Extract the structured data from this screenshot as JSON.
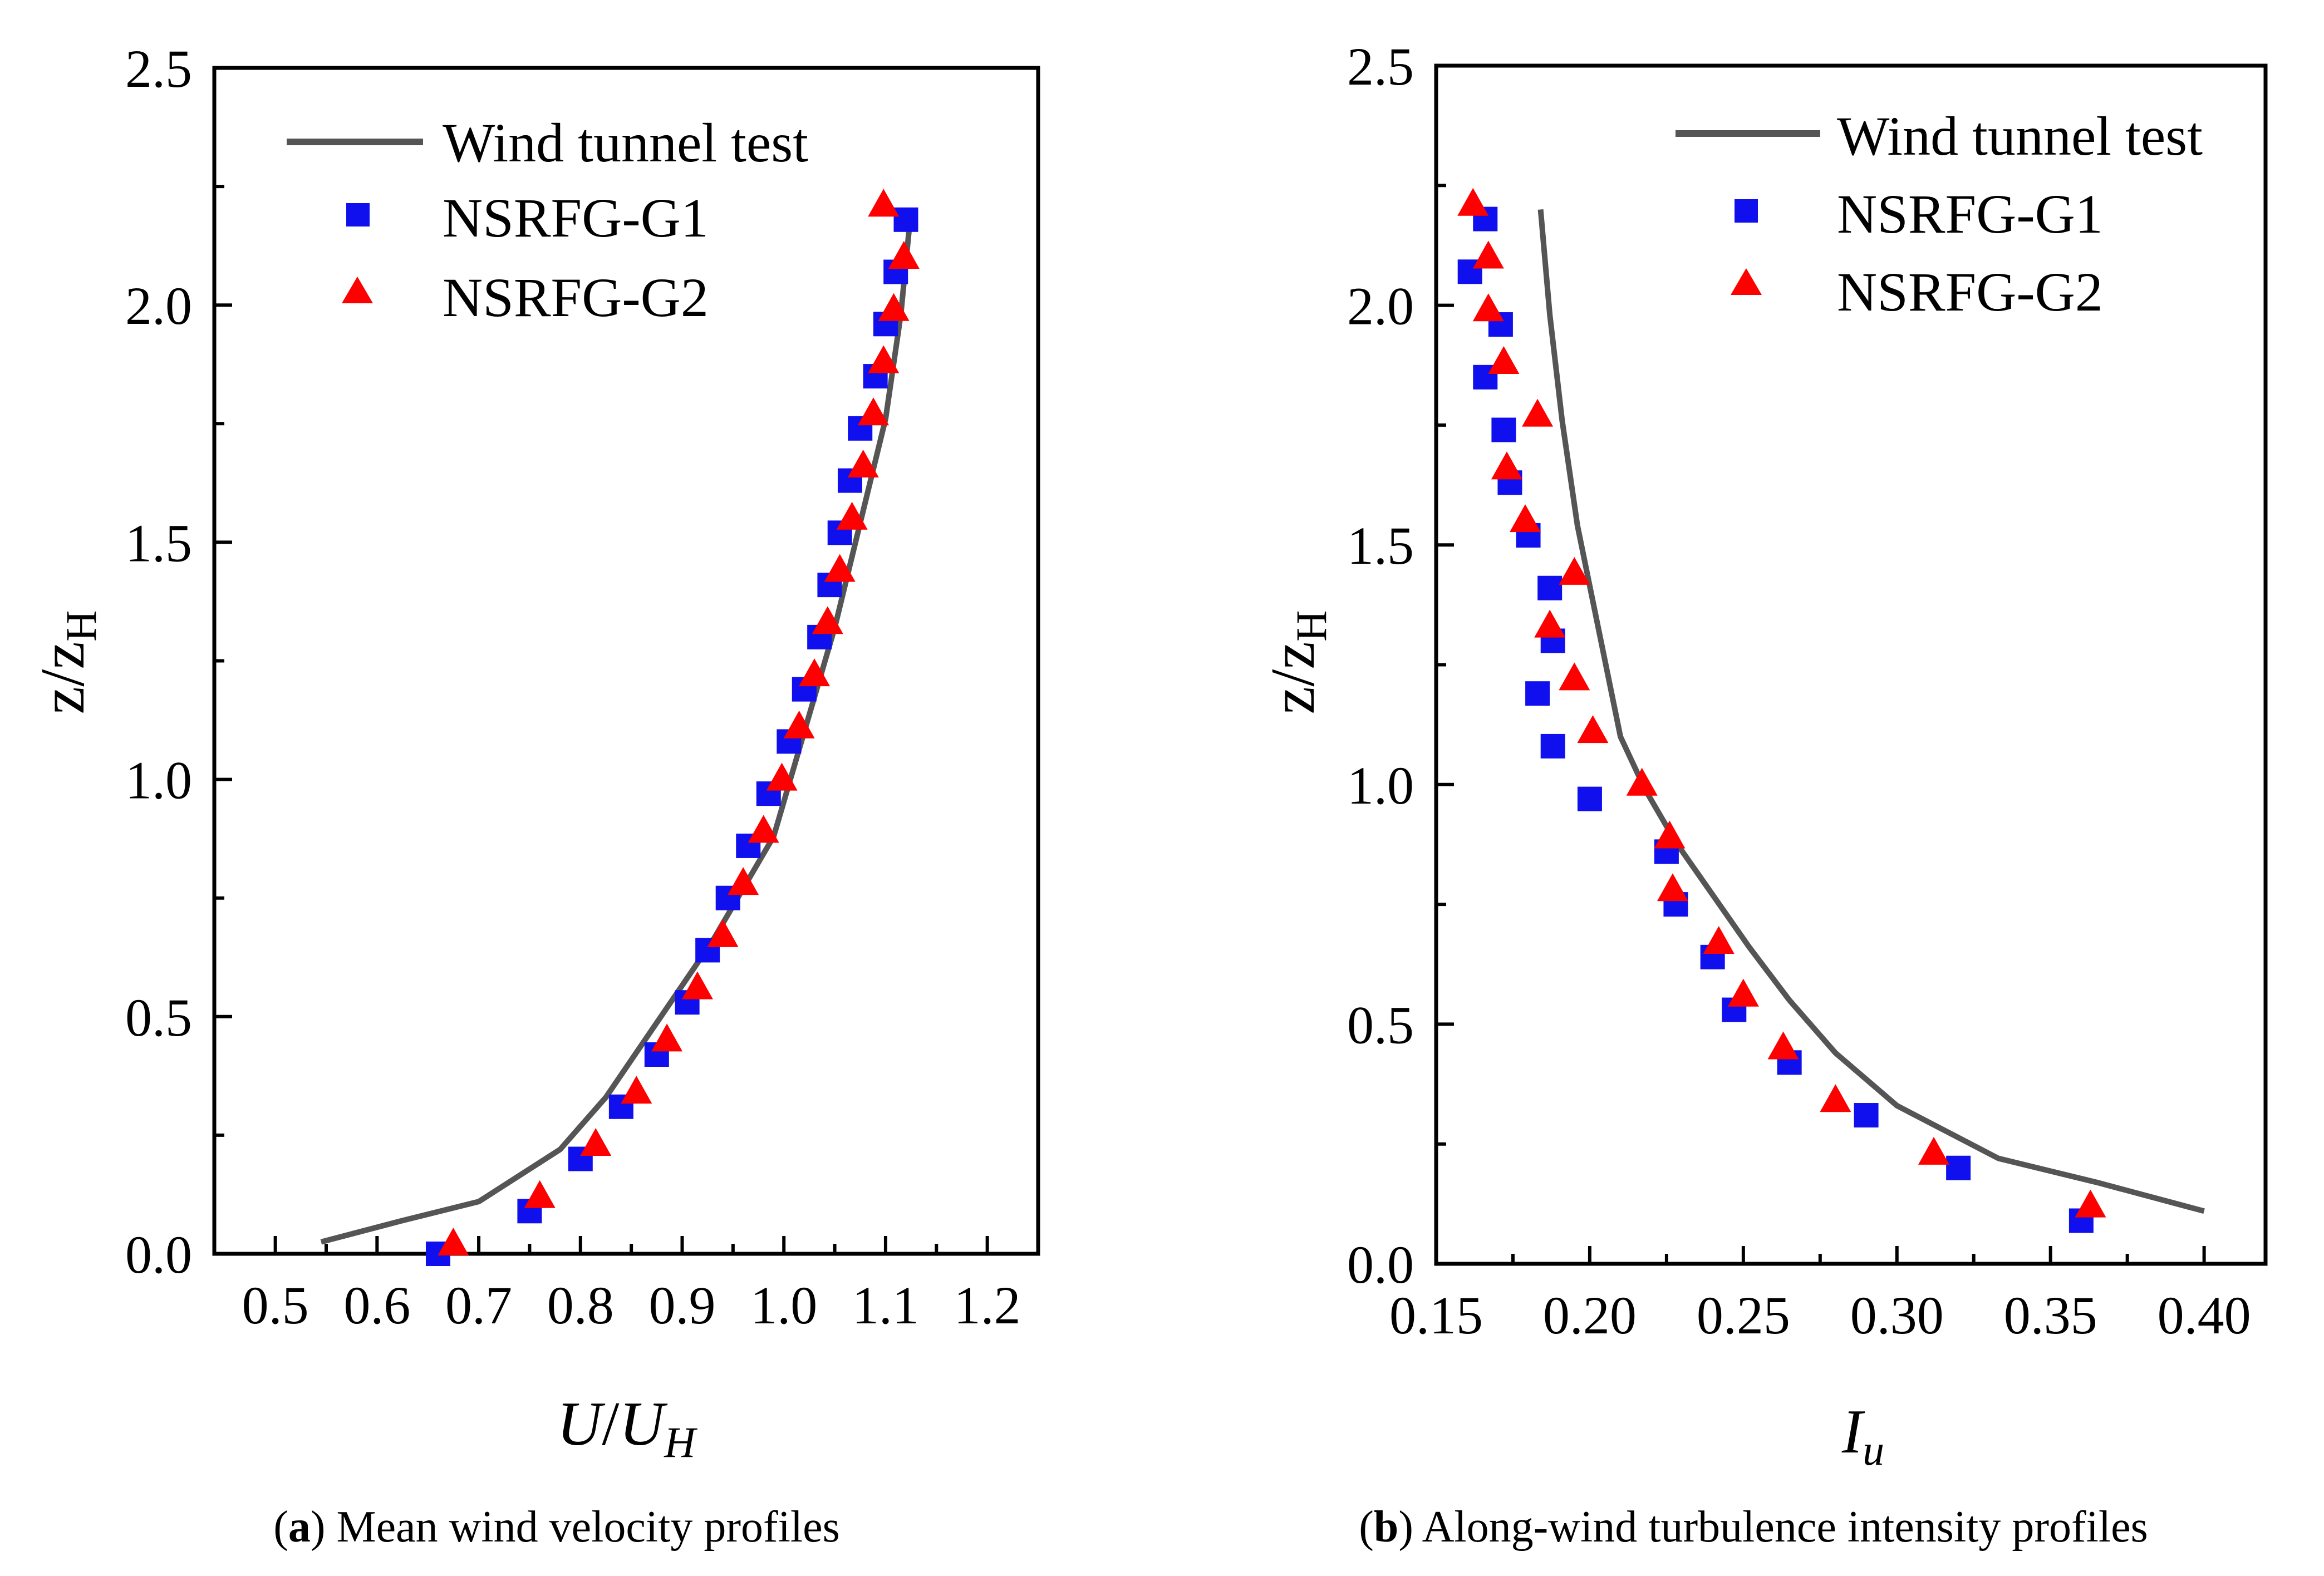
{
  "chart_data": [
    {
      "type": "line+scatter",
      "panel_label": "a",
      "caption": " Mean wind velocity profiles",
      "xlabel_main": "U",
      "xlabel_slash": "/",
      "xlabel_u": "U",
      "xlabel_sub": "H",
      "ylabel_main": "z/z",
      "ylabel_sub": "H",
      "xlim": [
        0.44,
        1.25
      ],
      "ylim": [
        0.0,
        2.5
      ],
      "xticks": [
        0.5,
        0.6,
        0.7,
        0.8,
        0.9,
        1.0,
        1.1,
        1.2
      ],
      "xtick_labels": [
        "0.5",
        "0.6",
        "0.7",
        "0.8",
        "0.9",
        "1.0",
        "1.1",
        "1.2"
      ],
      "yticks": [
        0.0,
        0.5,
        1.0,
        1.5,
        2.0,
        2.5
      ],
      "ytick_labels": [
        "0.0",
        "0.5",
        "1.0",
        "1.5",
        "2.0",
        "2.5"
      ],
      "legend": {
        "position": "top-left",
        "entries": [
          {
            "name": "Wind tunnel test",
            "marker": "line",
            "color": "#555555"
          },
          {
            "name": "NSRFG-G1",
            "marker": "square",
            "color": "#1010ee"
          },
          {
            "name": "NSRFG-G2",
            "marker": "triangle",
            "color": "#ff0000"
          }
        ]
      },
      "series": [
        {
          "name": "Wind tunnel test",
          "kind": "line",
          "color": "#555555",
          "x": [
            0.545,
            0.625,
            0.7,
            0.78,
            0.825,
            0.86,
            0.895,
            0.93,
            0.96,
            0.99,
            1.02,
            1.05,
            1.075,
            1.1,
            1.115,
            1.125
          ],
          "y": [
            0.025,
            0.07,
            0.11,
            0.22,
            0.33,
            0.44,
            0.55,
            0.66,
            0.77,
            0.88,
            1.1,
            1.32,
            1.54,
            1.76,
            1.98,
            2.2
          ]
        },
        {
          "name": "NSRFG-G1",
          "kind": "scatter",
          "marker": "square",
          "color": "#1010ee",
          "x": [
            0.66,
            0.75,
            0.8,
            0.84,
            0.875,
            0.905,
            0.925,
            0.945,
            0.965,
            0.985,
            1.005,
            1.02,
            1.035,
            1.045,
            1.055,
            1.065,
            1.075,
            1.09,
            1.1,
            1.11,
            1.12
          ],
          "y": [
            0.0,
            0.09,
            0.2,
            0.31,
            0.42,
            0.53,
            0.64,
            0.75,
            0.86,
            0.97,
            1.08,
            1.19,
            1.3,
            1.41,
            1.52,
            1.63,
            1.74,
            1.85,
            1.96,
            2.07,
            2.18
          ]
        },
        {
          "name": "NSRFG-G2",
          "kind": "scatter",
          "marker": "triangle",
          "color": "#ff0000",
          "x": [
            0.675,
            0.76,
            0.815,
            0.855,
            0.885,
            0.915,
            0.94,
            0.96,
            0.98,
            0.998,
            1.015,
            1.03,
            1.043,
            1.055,
            1.067,
            1.078,
            1.088,
            1.098,
            1.108,
            1.118,
            1.098
          ],
          "y": [
            0.02,
            0.12,
            0.23,
            0.34,
            0.45,
            0.56,
            0.67,
            0.78,
            0.89,
            1.0,
            1.11,
            1.22,
            1.33,
            1.44,
            1.55,
            1.66,
            1.77,
            1.88,
            1.99,
            2.1,
            2.21
          ]
        }
      ]
    },
    {
      "type": "line+scatter",
      "panel_label": "b",
      "caption": " Along-wind turbulence intensity profiles",
      "xlabel_main": "I",
      "xlabel_sub": "u",
      "ylabel_main": "z/z",
      "ylabel_sub": "H",
      "xlim": [
        0.15,
        0.42
      ],
      "ylim": [
        0.0,
        2.5
      ],
      "xticks": [
        0.15,
        0.2,
        0.25,
        0.3,
        0.35,
        0.4
      ],
      "xtick_labels": [
        "0.15",
        "0.20",
        "0.25",
        "0.30",
        "0.35",
        "0.40"
      ],
      "yticks": [
        0.0,
        0.5,
        1.0,
        1.5,
        2.0,
        2.5
      ],
      "ytick_labels": [
        "0.0",
        "0.5",
        "1.0",
        "1.5",
        "2.0",
        "2.5"
      ],
      "legend": {
        "position": "top-right",
        "entries": [
          {
            "name": "Wind tunnel test",
            "marker": "line",
            "color": "#555555"
          },
          {
            "name": "NSRFG-G1",
            "marker": "square",
            "color": "#1010ee"
          },
          {
            "name": "NSRFG-G2",
            "marker": "triangle",
            "color": "#ff0000"
          }
        ]
      },
      "series": [
        {
          "name": "Wind tunnel test",
          "kind": "line",
          "color": "#555555",
          "x": [
            0.4,
            0.365,
            0.333,
            0.3,
            0.28,
            0.265,
            0.252,
            0.24,
            0.228,
            0.218,
            0.21,
            0.203,
            0.196,
            0.191,
            0.187,
            0.184
          ],
          "y": [
            0.11,
            0.17,
            0.22,
            0.33,
            0.44,
            0.55,
            0.66,
            0.77,
            0.88,
            0.99,
            1.1,
            1.32,
            1.54,
            1.76,
            1.98,
            2.2
          ]
        },
        {
          "name": "NSRFG-G1",
          "kind": "scatter",
          "marker": "square",
          "color": "#1010ee",
          "x": [
            0.36,
            0.32,
            0.29,
            0.265,
            0.247,
            0.24,
            0.228,
            0.225,
            0.2,
            0.188,
            0.183,
            0.188,
            0.187,
            0.18,
            0.174,
            0.172,
            0.166,
            0.171,
            0.161,
            0.166
          ],
          "y": [
            0.09,
            0.2,
            0.31,
            0.42,
            0.53,
            0.64,
            0.75,
            0.86,
            0.97,
            1.08,
            1.19,
            1.3,
            1.41,
            1.52,
            1.63,
            1.74,
            1.85,
            1.96,
            2.07,
            2.18
          ]
        },
        {
          "name": "NSRFG-G2",
          "kind": "scatter",
          "marker": "triangle",
          "color": "#ff0000",
          "x": [
            0.363,
            0.312,
            0.28,
            0.263,
            0.25,
            0.242,
            0.227,
            0.226,
            0.217,
            0.201,
            0.195,
            0.187,
            0.195,
            0.179,
            0.173,
            0.183,
            0.172,
            0.167,
            0.167,
            0.162
          ],
          "y": [
            0.12,
            0.23,
            0.34,
            0.45,
            0.56,
            0.67,
            0.78,
            0.89,
            1.0,
            1.11,
            1.22,
            1.33,
            1.44,
            1.55,
            1.66,
            1.77,
            1.88,
            1.99,
            2.1,
            2.21
          ]
        }
      ]
    }
  ]
}
